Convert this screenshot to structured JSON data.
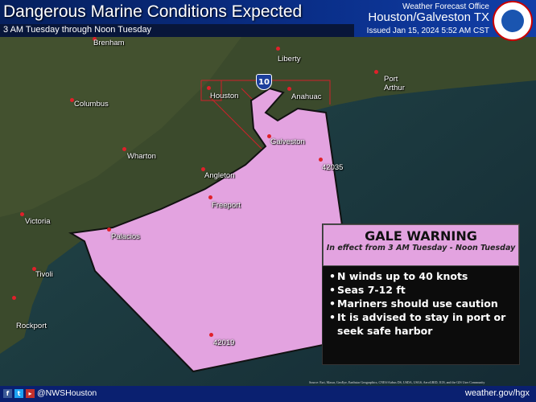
{
  "header": {
    "title": "Dangerous Marine Conditions Expected",
    "subtitle": "3 AM Tuesday through Noon Tuesday",
    "office_line1": "Weather Forecast Office",
    "office_line2": "Houston/Galveston TX",
    "issued": "Issued Jan 15, 2024 5:52 AM CST",
    "logo": "NWS logo"
  },
  "map": {
    "warning_color": "#e3a3e0",
    "highway": "10",
    "cities": [
      {
        "name": "Brenham"
      },
      {
        "name": "Liberty"
      },
      {
        "name": "Port Arthur",
        "lines": [
          "Port",
          "Arthur"
        ]
      },
      {
        "name": "Columbus"
      },
      {
        "name": "Houston"
      },
      {
        "name": "Anahuac"
      },
      {
        "name": "Wharton"
      },
      {
        "name": "Galveston"
      },
      {
        "name": "42035"
      },
      {
        "name": "Angleton"
      },
      {
        "name": "Freeport"
      },
      {
        "name": "Victoria"
      },
      {
        "name": "Palacios"
      },
      {
        "name": "Tivoli"
      },
      {
        "name": "Rockport"
      },
      {
        "name": "42019"
      }
    ],
    "source": "Source: Esri, Maxar, GeoEye, Earthstar Geographics, CNES/Airbus DS, USDA, USGS, AeroGRID, IGN, and the GIS User Community"
  },
  "warning": {
    "title": "GALE WARNING",
    "effective": "In effect from 3 AM  Tuesday - Noon Tuesday",
    "bullets": [
      "N winds up to 40 knots",
      "Seas 7-12 ft",
      "Mariners should use caution",
      "It is advised to stay in port or seek safe harbor"
    ]
  },
  "footer": {
    "social_icons": [
      "facebook-icon",
      "twitter-icon",
      "youtube-icon"
    ],
    "handle": "@NWSHouston",
    "url": "weather.gov/hgx"
  }
}
